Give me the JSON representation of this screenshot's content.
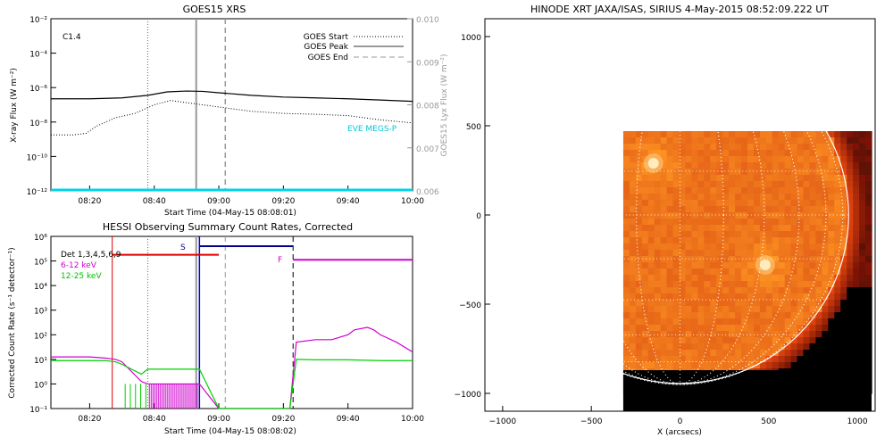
{
  "chart_data": [
    {
      "type": "line",
      "title": "GOES15 XRS",
      "xlabel": "Start Time (04-May-15 08:08:01)",
      "ylabel": "X-ray Flux (W m⁻²)",
      "ylabel_right": "GOES15 Lyx Flux (W m⁻²)",
      "flare_class": "C1.4",
      "x_ticks": [
        "08:20",
        "08:40",
        "09:00",
        "09:20",
        "09:40",
        "10:00"
      ],
      "x_range_minutes_after_0800": [
        8,
        120
      ],
      "y_ticks": [
        "10⁻²",
        "10⁻⁴",
        "10⁻⁶",
        "10⁻⁸",
        "10⁻¹⁰",
        "10⁻¹²"
      ],
      "y_exponents": [
        -2,
        -4,
        -6,
        -8,
        -10,
        -12
      ],
      "ylim_log10": [
        -12,
        -2
      ],
      "y_right_ticks": [
        "0.010",
        "0.009",
        "0.008",
        "0.007",
        "0.006"
      ],
      "y_right_values": [
        0.01,
        0.009,
        0.008,
        0.007,
        0.006
      ],
      "ylim_right": [
        0.006,
        0.01
      ],
      "legend": [
        "GOES Start",
        "GOES Peak",
        "GOES End"
      ],
      "extra_label": "EVE MEGS-P",
      "markers_minutes_after_0800": {
        "start": 38,
        "peak": 53,
        "end": 62
      },
      "series": [
        {
          "name": "GOES long channel",
          "unit": "log10 W m-2",
          "x": [
            8,
            20,
            30,
            38,
            44,
            50,
            55,
            60,
            70,
            80,
            90,
            100,
            110,
            120
          ],
          "values": [
            -6.65,
            -6.65,
            -6.6,
            -6.45,
            -6.25,
            -6.2,
            -6.22,
            -6.3,
            -6.45,
            -6.55,
            -6.6,
            -6.65,
            -6.72,
            -6.8
          ]
        },
        {
          "name": "GOES15 Lyx",
          "unit": "W m-2",
          "x": [
            8,
            15,
            19,
            22,
            28,
            34,
            40,
            45,
            50,
            55,
            60,
            70,
            80,
            90,
            100,
            110,
            120
          ],
          "values": [
            0.0073,
            0.0073,
            0.00734,
            0.0075,
            0.0077,
            0.0078,
            0.008,
            0.0081,
            0.00805,
            0.008,
            0.00795,
            0.00785,
            0.0078,
            0.00778,
            0.00775,
            0.00765,
            0.00758
          ]
        },
        {
          "name": "EVE MEGS-P baseline",
          "unit": "log10 W m-2",
          "x": [
            8,
            120
          ],
          "values": [
            -11.95,
            -11.95
          ]
        }
      ]
    },
    {
      "type": "line",
      "title": "HESSI Observing Summary Count Rates, Corrected",
      "xlabel": "Start Time (04-May-15 08:08:02)",
      "ylabel": "Corrected Count Rate (s⁻¹ detector⁻¹)",
      "x_ticks": [
        "08:20",
        "08:40",
        "09:00",
        "09:20",
        "09:40",
        "10:00"
      ],
      "y_ticks": [
        "10⁶",
        "10⁵",
        "10⁴",
        "10³",
        "10²",
        "10¹",
        "10⁰",
        "10⁻¹"
      ],
      "y_exponents": [
        6,
        5,
        4,
        3,
        2,
        1,
        0,
        -1
      ],
      "ylim_log10": [
        -1,
        6
      ],
      "legend": [
        "Det 1,3,4,5,6,9",
        "6-12 keV",
        "12-25 keV"
      ],
      "flag_labels": [
        "S",
        "F"
      ],
      "markers_minutes_after_0800": {
        "start": 38,
        "peak": 53,
        "end": 62
      },
      "flags": [
        {
          "label": "red",
          "x_start": 27,
          "x_end": 60,
          "level_log10": 5.25
        },
        {
          "label": "S",
          "x_start": 54,
          "x_end": 83,
          "level_log10": 5.6
        },
        {
          "label": "F",
          "x_start": 83,
          "x_end": 120,
          "level_log10": 5.05
        }
      ],
      "series": [
        {
          "name": "6-12 keV",
          "unit": "log10 counts s-1 det-1",
          "x": [
            8,
            15,
            20,
            25,
            28,
            30,
            36,
            38,
            54,
            60,
            70,
            80,
            82,
            84,
            90,
            95,
            100,
            102,
            106,
            108,
            110,
            115,
            120
          ],
          "values": [
            1.1,
            1.1,
            1.1,
            1.05,
            1.0,
            0.9,
            0.1,
            0.0,
            0.0,
            -1.0,
            -1.0,
            -1.0,
            -1.0,
            1.7,
            1.8,
            1.8,
            2.0,
            2.2,
            2.3,
            2.2,
            2.0,
            1.7,
            1.3
          ]
        },
        {
          "name": "12-25 keV",
          "unit": "log10 counts s-1 det-1",
          "x": [
            8,
            15,
            20,
            25,
            28,
            30,
            36,
            38,
            54,
            60,
            70,
            80,
            82,
            84,
            90,
            100,
            110,
            120
          ],
          "values": [
            0.95,
            0.95,
            0.95,
            0.95,
            0.9,
            0.8,
            0.4,
            0.6,
            0.6,
            -1.0,
            -1.0,
            -1.0,
            -1.0,
            1.0,
            0.98,
            0.98,
            0.95,
            0.95
          ]
        }
      ]
    },
    {
      "type": "heatmap",
      "title": "HINODE XRT JAXA/ISAS, SIRIUS   4-May-2015 08:52:09.222 UT",
      "xlabel": "X (arcsecs)",
      "ylabel": "",
      "x_ticks": [
        "−1000",
        "−500",
        "0",
        "500",
        "1000"
      ],
      "x_values": [
        -1000,
        -500,
        0,
        500,
        1000
      ],
      "y_ticks": [
        "1000",
        "500",
        "0",
        "−500",
        "−1000"
      ],
      "y_values": [
        1000,
        500,
        0,
        -500,
        -1000
      ],
      "xlim": [
        -1100,
        1100
      ],
      "ylim": [
        -1100,
        1100
      ],
      "image_extent": {
        "x": [
          -320,
          1080
        ],
        "y": [
          -1000,
          470
        ]
      },
      "limb_radius_arcsec": 950,
      "bright_regions": [
        {
          "x": -150,
          "y": 290,
          "intensity": 1.0
        },
        {
          "x": 480,
          "y": -280,
          "intensity": 0.9
        }
      ]
    }
  ]
}
